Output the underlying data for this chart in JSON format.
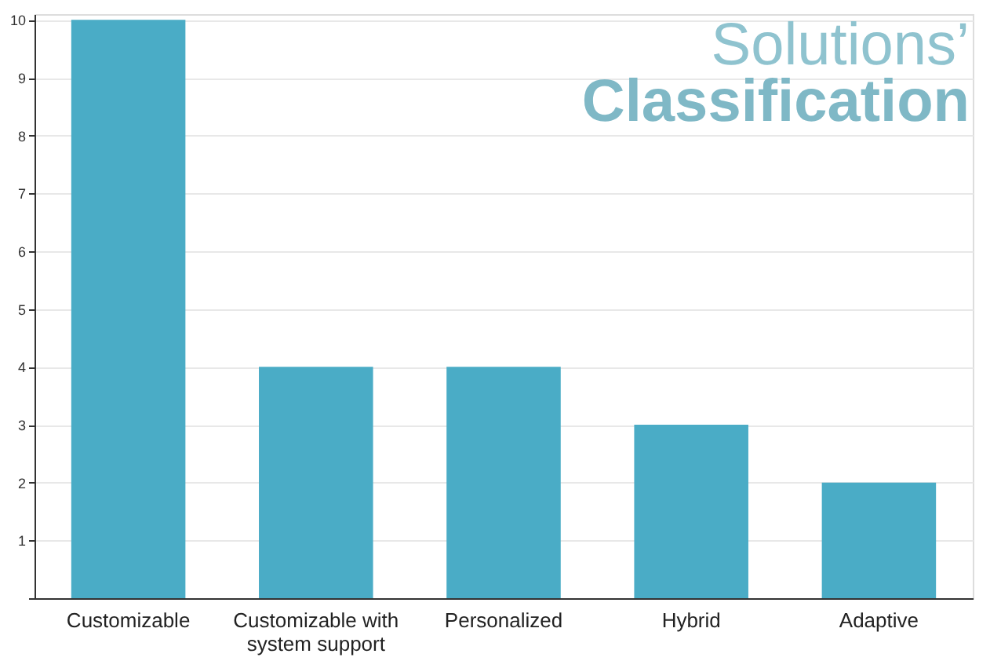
{
  "chart_data": {
    "type": "bar",
    "title": "Solutions’",
    "subtitle": "Classification",
    "categories": [
      "Customizable",
      "Customizable with system support",
      "Personalized",
      "Hybrid",
      "Adaptive"
    ],
    "values": [
      10,
      4,
      4,
      3,
      2
    ],
    "color": "#4aacc6",
    "ylim": [
      0,
      10.1
    ],
    "yticks": [
      {
        "value": 0,
        "label": null
      },
      1,
      2,
      3,
      4,
      5,
      6,
      7,
      8,
      9,
      10
    ],
    "grid": "y"
  }
}
